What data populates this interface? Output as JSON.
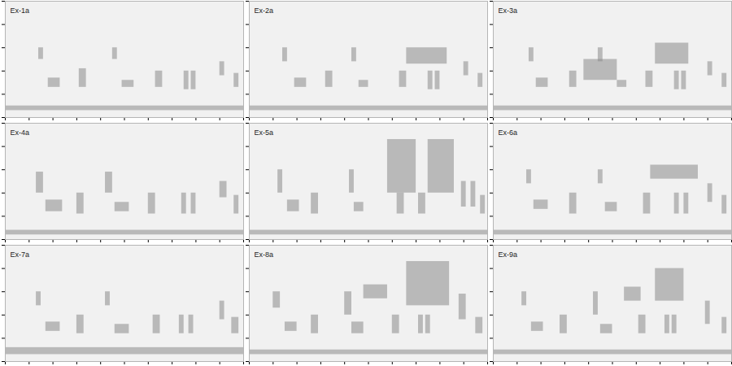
{
  "chart_data": [
    {
      "type": "spectrogram",
      "title": "Ex-1a",
      "xlim": [
        0,
        10
      ],
      "ylim": [
        0,
        5
      ],
      "xticks": [
        0,
        1,
        2,
        3,
        4,
        5,
        6,
        7,
        8,
        9,
        10
      ],
      "yticks": [
        0,
        1,
        2,
        3,
        4,
        5
      ],
      "tick_labels": false,
      "color": "#8a8a8a",
      "syllables": [
        [
          1.4,
          1.6,
          2.5,
          3.0
        ],
        [
          1.8,
          2.3,
          1.3,
          1.7
        ],
        [
          3.1,
          3.4,
          1.3,
          2.1
        ],
        [
          4.5,
          4.7,
          2.5,
          3.0
        ],
        [
          4.9,
          5.4,
          1.3,
          1.6
        ],
        [
          6.3,
          6.6,
          1.3,
          2.0
        ],
        [
          7.5,
          7.7,
          1.2,
          2.0
        ],
        [
          7.8,
          8.0,
          1.2,
          2.0
        ],
        [
          9.0,
          9.2,
          1.8,
          2.4
        ],
        [
          9.6,
          9.8,
          1.3,
          1.9
        ],
        [
          0,
          10,
          0.3,
          0.5
        ]
      ]
    },
    {
      "type": "spectrogram",
      "title": "Ex-2a",
      "xlim": [
        0,
        10
      ],
      "ylim": [
        0,
        5
      ],
      "xticks": [
        0,
        1,
        2,
        3,
        4,
        5,
        6,
        7,
        8,
        9,
        10
      ],
      "yticks": [
        0,
        1,
        2,
        3,
        4,
        5
      ],
      "tick_labels": false,
      "color": "#8a8a8a",
      "syllables": [
        [
          1.4,
          1.6,
          2.4,
          3.0
        ],
        [
          1.9,
          2.4,
          1.3,
          1.7
        ],
        [
          3.2,
          3.5,
          1.3,
          2.0
        ],
        [
          4.3,
          4.5,
          2.4,
          3.0
        ],
        [
          4.6,
          5.0,
          1.3,
          1.6
        ],
        [
          6.3,
          6.6,
          1.3,
          2.0
        ],
        [
          7.5,
          7.7,
          1.2,
          2.0
        ],
        [
          7.8,
          8.0,
          1.2,
          2.0
        ],
        [
          6.6,
          8.3,
          2.3,
          3.0
        ],
        [
          9.0,
          9.2,
          1.8,
          2.4
        ],
        [
          9.6,
          9.8,
          1.3,
          1.9
        ],
        [
          0,
          10,
          0.3,
          0.5
        ]
      ]
    },
    {
      "type": "spectrogram",
      "title": "Ex-3a",
      "xlim": [
        0,
        10
      ],
      "ylim": [
        0,
        5
      ],
      "xticks": [
        0,
        1,
        2,
        3,
        4,
        5,
        6,
        7,
        8,
        9,
        10
      ],
      "yticks": [
        0,
        1,
        2,
        3,
        4,
        5
      ],
      "tick_labels": false,
      "color": "#8a8a8a",
      "syllables": [
        [
          1.5,
          1.7,
          2.4,
          3.0
        ],
        [
          1.8,
          2.3,
          1.3,
          1.7
        ],
        [
          3.2,
          3.5,
          1.3,
          2.0
        ],
        [
          4.4,
          4.6,
          2.4,
          3.0
        ],
        [
          3.8,
          5.2,
          1.6,
          2.5
        ],
        [
          5.2,
          5.6,
          1.3,
          1.6
        ],
        [
          6.4,
          6.7,
          1.3,
          2.0
        ],
        [
          6.8,
          8.2,
          2.3,
          3.2
        ],
        [
          7.6,
          7.8,
          1.2,
          2.0
        ],
        [
          7.9,
          8.1,
          1.2,
          2.0
        ],
        [
          9.0,
          9.2,
          1.8,
          2.4
        ],
        [
          9.6,
          9.8,
          1.3,
          1.9
        ],
        [
          0,
          10,
          0.3,
          0.5
        ]
      ]
    },
    {
      "type": "spectrogram",
      "title": "Ex-4a",
      "xlim": [
        0,
        10
      ],
      "ylim": [
        0,
        5
      ],
      "xticks": [
        0,
        1,
        2,
        3,
        4,
        5,
        6,
        7,
        8,
        9,
        10
      ],
      "yticks": [
        0,
        1,
        2,
        3,
        4,
        5
      ],
      "tick_labels": false,
      "color": "#8a8a8a",
      "syllables": [
        [
          1.3,
          1.6,
          2.0,
          2.9
        ],
        [
          1.7,
          2.4,
          1.2,
          1.7
        ],
        [
          3.0,
          3.3,
          1.1,
          2.0
        ],
        [
          4.2,
          4.5,
          2.0,
          2.9
        ],
        [
          4.6,
          5.2,
          1.2,
          1.6
        ],
        [
          6.0,
          6.3,
          1.1,
          2.0
        ],
        [
          7.4,
          7.6,
          1.1,
          2.0
        ],
        [
          7.8,
          8.0,
          1.1,
          2.0
        ],
        [
          9.0,
          9.3,
          1.8,
          2.5
        ],
        [
          9.6,
          9.8,
          1.1,
          1.9
        ],
        [
          0,
          10,
          0.2,
          0.4
        ]
      ]
    },
    {
      "type": "spectrogram",
      "title": "Ex-5a",
      "xlim": [
        0,
        10
      ],
      "ylim": [
        0,
        5
      ],
      "xticks": [
        0,
        1,
        2,
        3,
        4,
        5,
        6,
        7,
        8,
        9,
        10
      ],
      "yticks": [
        0,
        1,
        2,
        3,
        4,
        5
      ],
      "tick_labels": false,
      "color": "#8a8a8a",
      "syllables": [
        [
          1.2,
          1.4,
          2.0,
          3.0
        ],
        [
          1.6,
          2.1,
          1.2,
          1.7
        ],
        [
          2.6,
          2.9,
          1.1,
          2.0
        ],
        [
          4.2,
          4.4,
          2.0,
          3.0
        ],
        [
          4.4,
          4.8,
          1.2,
          1.6
        ],
        [
          5.8,
          7.0,
          2.0,
          4.3
        ],
        [
          7.5,
          8.6,
          2.0,
          4.3
        ],
        [
          6.2,
          6.5,
          1.1,
          2.0
        ],
        [
          7.1,
          7.4,
          1.1,
          2.0
        ],
        [
          8.9,
          9.1,
          1.4,
          2.5
        ],
        [
          9.3,
          9.5,
          1.4,
          2.5
        ],
        [
          9.7,
          9.9,
          1.1,
          1.9
        ],
        [
          0,
          10,
          0.2,
          0.4
        ]
      ]
    },
    {
      "type": "spectrogram",
      "title": "Ex-6a",
      "xlim": [
        0,
        10
      ],
      "ylim": [
        0,
        5
      ],
      "xticks": [
        0,
        1,
        2,
        3,
        4,
        5,
        6,
        7,
        8,
        9,
        10
      ],
      "yticks": [
        0,
        1,
        2,
        3,
        4,
        5
      ],
      "tick_labels": false,
      "color": "#8a8a8a",
      "syllables": [
        [
          1.4,
          1.6,
          2.4,
          3.0
        ],
        [
          1.7,
          2.3,
          1.3,
          1.7
        ],
        [
          3.2,
          3.5,
          1.1,
          2.0
        ],
        [
          4.4,
          4.6,
          2.4,
          3.0
        ],
        [
          4.7,
          5.2,
          1.2,
          1.6
        ],
        [
          6.3,
          6.6,
          1.1,
          2.0
        ],
        [
          6.6,
          8.6,
          2.6,
          3.2
        ],
        [
          7.6,
          7.8,
          1.1,
          2.0
        ],
        [
          8.0,
          8.2,
          1.1,
          2.0
        ],
        [
          9.0,
          9.2,
          1.6,
          2.4
        ],
        [
          9.6,
          9.8,
          1.1,
          1.9
        ],
        [
          0,
          10,
          0.2,
          0.4
        ]
      ]
    },
    {
      "type": "spectrogram",
      "title": "Ex-7a",
      "xlim": [
        0,
        10
      ],
      "ylim": [
        0,
        5
      ],
      "xticks": [
        0,
        1,
        2,
        3,
        4,
        5,
        6,
        7,
        8,
        9,
        10
      ],
      "yticks": [
        0,
        1,
        2,
        3,
        4,
        5
      ],
      "tick_labels": false,
      "color": "#8a8a8a",
      "syllables": [
        [
          1.3,
          1.5,
          2.4,
          3.0
        ],
        [
          1.7,
          2.3,
          1.3,
          1.7
        ],
        [
          3.0,
          3.3,
          1.2,
          2.0
        ],
        [
          4.2,
          4.4,
          2.4,
          3.0
        ],
        [
          4.6,
          5.2,
          1.2,
          1.6
        ],
        [
          6.2,
          6.5,
          1.2,
          2.0
        ],
        [
          7.3,
          7.5,
          1.2,
          2.0
        ],
        [
          7.7,
          7.9,
          1.2,
          2.0
        ],
        [
          9.0,
          9.2,
          1.8,
          2.6
        ],
        [
          9.5,
          9.8,
          1.2,
          1.9
        ],
        [
          0,
          10,
          0.3,
          0.6
        ]
      ]
    },
    {
      "type": "spectrogram",
      "title": "Ex-8a",
      "xlim": [
        0,
        10
      ],
      "ylim": [
        0,
        5
      ],
      "xticks": [
        0,
        1,
        2,
        3,
        4,
        5,
        6,
        7,
        8,
        9,
        10
      ],
      "yticks": [
        0,
        1,
        2,
        3,
        4,
        5
      ],
      "tick_labels": false,
      "color": "#8a8a8a",
      "syllables": [
        [
          1.0,
          1.3,
          2.3,
          3.0
        ],
        [
          1.5,
          2.0,
          1.3,
          1.7
        ],
        [
          2.6,
          2.9,
          1.2,
          2.0
        ],
        [
          4.0,
          4.3,
          2.0,
          3.0
        ],
        [
          4.3,
          4.8,
          1.2,
          1.7
        ],
        [
          4.8,
          5.8,
          2.7,
          3.3
        ],
        [
          6.0,
          6.3,
          1.2,
          2.0
        ],
        [
          7.1,
          7.3,
          1.2,
          2.0
        ],
        [
          7.4,
          7.6,
          1.2,
          2.0
        ],
        [
          6.6,
          8.4,
          2.4,
          4.3
        ],
        [
          8.8,
          9.1,
          1.8,
          2.9
        ],
        [
          9.5,
          9.8,
          1.2,
          1.9
        ],
        [
          0,
          10,
          0.3,
          0.5
        ]
      ]
    },
    {
      "type": "spectrogram",
      "title": "Ex-9a",
      "xlim": [
        0,
        10
      ],
      "ylim": [
        0,
        5
      ],
      "xticks": [
        0,
        1,
        2,
        3,
        4,
        5,
        6,
        7,
        8,
        9,
        10
      ],
      "yticks": [
        0,
        1,
        2,
        3,
        4,
        5
      ],
      "tick_labels": false,
      "color": "#8a8a8a",
      "syllables": [
        [
          1.2,
          1.4,
          2.4,
          3.0
        ],
        [
          1.6,
          2.1,
          1.3,
          1.7
        ],
        [
          2.8,
          3.1,
          1.2,
          2.0
        ],
        [
          4.2,
          4.4,
          2.0,
          3.0
        ],
        [
          4.5,
          5.0,
          1.2,
          1.6
        ],
        [
          5.5,
          6.2,
          2.6,
          3.2
        ],
        [
          6.1,
          6.4,
          1.2,
          2.0
        ],
        [
          7.2,
          7.4,
          1.2,
          2.0
        ],
        [
          7.5,
          7.7,
          1.2,
          2.0
        ],
        [
          6.8,
          8.0,
          2.6,
          4.0
        ],
        [
          8.9,
          9.1,
          1.6,
          2.6
        ],
        [
          9.6,
          9.8,
          1.2,
          1.9
        ],
        [
          0,
          10,
          0.3,
          0.5
        ]
      ]
    }
  ]
}
